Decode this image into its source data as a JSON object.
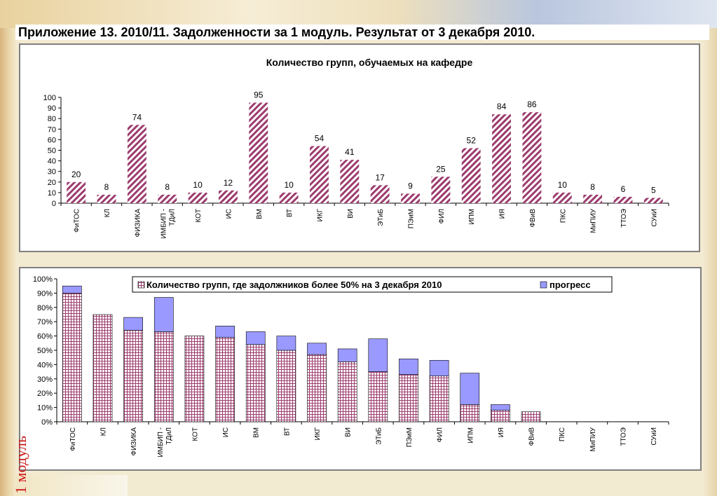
{
  "page": {
    "title": "Приложение  13. 2010/11. Задолженности за 1 модуль. Результат от 3 декабря 2010.",
    "side_label": "1 модуль"
  },
  "colors": {
    "bar_main": "#9c3b6e",
    "bar_progress": "#9999ff",
    "axis": "#000000",
    "text_side_label": "#cc1a1a"
  },
  "chart_data": [
    {
      "type": "bar",
      "title": "Количество групп, обучаемых на кафедре",
      "categories": [
        "ФиТОС",
        "КЛ",
        "ФИЗИКА",
        "ИМБИП - ТДиЛ",
        "КОТ",
        "ИС",
        "ВМ",
        "ВТ",
        "ИКГ",
        "ВИ",
        "ЭТиБ",
        "ПЭиМ",
        "ФИЛ",
        "ИПМ",
        "ИЯ",
        "ФВиВ",
        "ПКС",
        "МиПИУ",
        "ТТОЭ",
        "СУиИ"
      ],
      "values": [
        20,
        8,
        74,
        8,
        10,
        12,
        95,
        10,
        54,
        41,
        17,
        9,
        25,
        52,
        84,
        86,
        10,
        8,
        6,
        5
      ],
      "data_labels": [
        "20",
        "8",
        "74",
        "8",
        "10",
        "12",
        "95",
        "10",
        "54",
        "41",
        "17",
        "9",
        "25",
        "52",
        "84",
        "86",
        "10",
        "8",
        "6",
        "5"
      ],
      "ylim": [
        0,
        100
      ],
      "yticks": [
        "0",
        "10",
        "20",
        "30",
        "40",
        "50",
        "60",
        "70",
        "80",
        "90",
        "100"
      ],
      "pattern": "diagonal-stripes",
      "grid": false,
      "legend": "none"
    },
    {
      "type": "bar",
      "stacked": true,
      "categories": [
        "ФиТОС",
        "КЛ",
        "ФИЗИКА",
        "ИМБИП - ТДиЛ",
        "КОТ",
        "ИС",
        "ВМ",
        "ВТ",
        "ИКГ",
        "ВИ",
        "ЭТиБ",
        "ПЭиМ",
        "ФИЛ",
        "ИПМ",
        "ИЯ",
        "ФВиВ",
        "ПКС",
        "МиПИУ",
        "ТТОЭ",
        "СУиИ"
      ],
      "series": [
        {
          "name": "Количество групп, где задолжников более  50% на 3 декабря 2010",
          "values": [
            90,
            75,
            64,
            63,
            60,
            59,
            54,
            50,
            47,
            42,
            35,
            33,
            32,
            12,
            8,
            7,
            0,
            0,
            0,
            0
          ],
          "pattern": "grid"
        },
        {
          "name": "прогресс",
          "values": [
            5,
            0,
            9,
            24,
            0,
            8,
            9,
            10,
            8,
            9,
            23,
            11,
            11,
            22,
            4,
            0,
            0,
            0,
            0,
            0
          ],
          "pattern": "solid"
        }
      ],
      "ylim": [
        0,
        100
      ],
      "yticks": [
        "0%",
        "10%",
        "20%",
        "30%",
        "40%",
        "50%",
        "60%",
        "70%",
        "80%",
        "90%",
        "100%"
      ],
      "grid": false,
      "legend": "top"
    }
  ]
}
